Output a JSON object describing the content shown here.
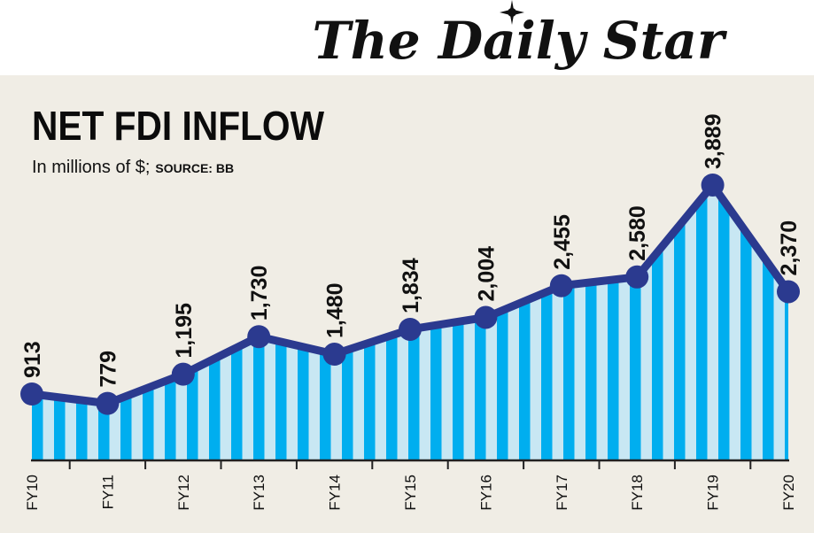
{
  "masthead": {
    "logo_text": "The Daily Star"
  },
  "chart_data": {
    "type": "line",
    "title": "NET FDI INFLOW",
    "subtitle": "In millions of $;",
    "source": "SOURCE: BB",
    "categories": [
      "FY10",
      "FY11",
      "FY12",
      "FY13",
      "FY14",
      "FY15",
      "FY16",
      "FY17",
      "FY18",
      "FY19",
      "FY20"
    ],
    "values": [
      913,
      779,
      1195,
      1730,
      1480,
      1834,
      2004,
      2455,
      2580,
      3889,
      2370
    ],
    "data_labels": [
      "913",
      "779",
      "1,195",
      "1,730",
      "1,480",
      "1,834",
      "2,004",
      "2,455",
      "2,580",
      "3,889",
      "2,370"
    ],
    "ylim": [
      0,
      3889
    ],
    "grid": false,
    "colors": {
      "line": "#2b3a8f",
      "fill_dark": "#00aeef",
      "fill_light": "#c8e7f3",
      "background": "#f0ede5"
    }
  }
}
